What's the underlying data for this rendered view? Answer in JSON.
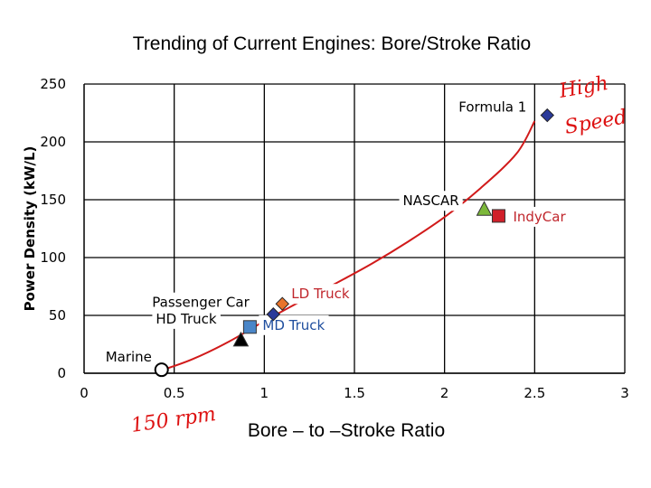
{
  "chart_data": {
    "type": "scatter",
    "title": "Trending of Current Engines: Bore/Stroke Ratio",
    "xlabel": "Bore – to –Stroke Ratio",
    "ylabel": "Power Density (kW/L)",
    "xlim": [
      0,
      3
    ],
    "ylim": [
      0,
      250
    ],
    "xticks": [
      0,
      0.5,
      1,
      1.5,
      2,
      2.5,
      3
    ],
    "xtick_labels": [
      "0",
      "0.5",
      "1",
      "1.5",
      "2",
      "2.5",
      "3"
    ],
    "yticks": [
      0,
      50,
      100,
      150,
      200,
      250
    ],
    "ytick_labels": [
      "0",
      "50",
      "100",
      "150",
      "200",
      "250"
    ],
    "grid": true,
    "points": [
      {
        "label": "Marine",
        "x": 0.43,
        "y": 3,
        "marker": "circle-open",
        "color": "#000000"
      },
      {
        "label": "HD Truck",
        "x": 0.87,
        "y": 29,
        "marker": "triangle",
        "color": "#000000"
      },
      {
        "label": "MD Truck",
        "x": 0.92,
        "y": 40,
        "marker": "square",
        "color": "#4a86c8"
      },
      {
        "label": "Passenger Car",
        "x": 1.05,
        "y": 51,
        "marker": "diamond",
        "color": "#2a3a9a"
      },
      {
        "label": "LD Truck",
        "x": 1.1,
        "y": 60,
        "marker": "diamond",
        "color": "#e8742c"
      },
      {
        "label": "NASCAR",
        "x": 2.22,
        "y": 142,
        "marker": "triangle",
        "color": "#7cb83a"
      },
      {
        "label": "IndyCar",
        "x": 2.3,
        "y": 136,
        "marker": "square",
        "color": "#d0202a"
      },
      {
        "label": "Formula 1",
        "x": 2.57,
        "y": 223,
        "marker": "diamond",
        "color": "#2a3a9a"
      }
    ],
    "trendline": {
      "color": "#d11a1a",
      "x": [
        0.42,
        0.6,
        0.8,
        1.0,
        1.2,
        1.4,
        1.6,
        1.8,
        2.0,
        2.2,
        2.4,
        2.5
      ],
      "y": [
        2,
        12,
        27,
        45,
        62,
        78,
        95,
        114,
        135,
        160,
        190,
        218
      ]
    },
    "annotations": {
      "left": "150 rpm",
      "right_top": "High",
      "right_bottom": "Speed"
    }
  }
}
